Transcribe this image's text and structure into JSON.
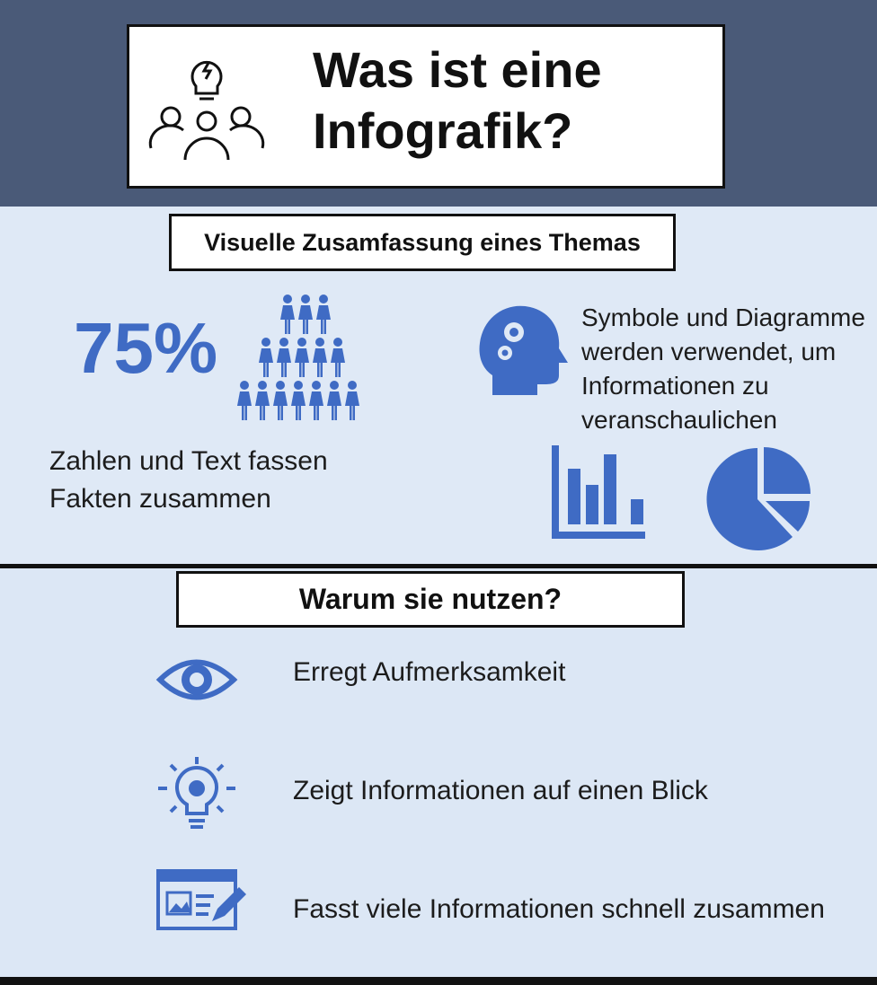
{
  "header": {
    "title_lines": [
      "Was ist eine",
      "Infografik?"
    ]
  },
  "section1": {
    "heading": "Visuelle Zusamfassung eines Themas",
    "stat": "75%",
    "stat_caption_lines": [
      "Zahlen und Text fassen",
      "Fakten zusammen"
    ],
    "symbols_caption_lines": [
      "Symbole und Diagramme",
      "werden verwendet, um",
      "Informationen zu",
      "veranschaulichen"
    ]
  },
  "section2": {
    "heading": "Warum sie nutzen?",
    "items": [
      "Erregt Aufmerksamkeit",
      "Zeigt Informationen auf einen Blick",
      "Fasst viele Informationen schnell zusammen"
    ]
  }
}
